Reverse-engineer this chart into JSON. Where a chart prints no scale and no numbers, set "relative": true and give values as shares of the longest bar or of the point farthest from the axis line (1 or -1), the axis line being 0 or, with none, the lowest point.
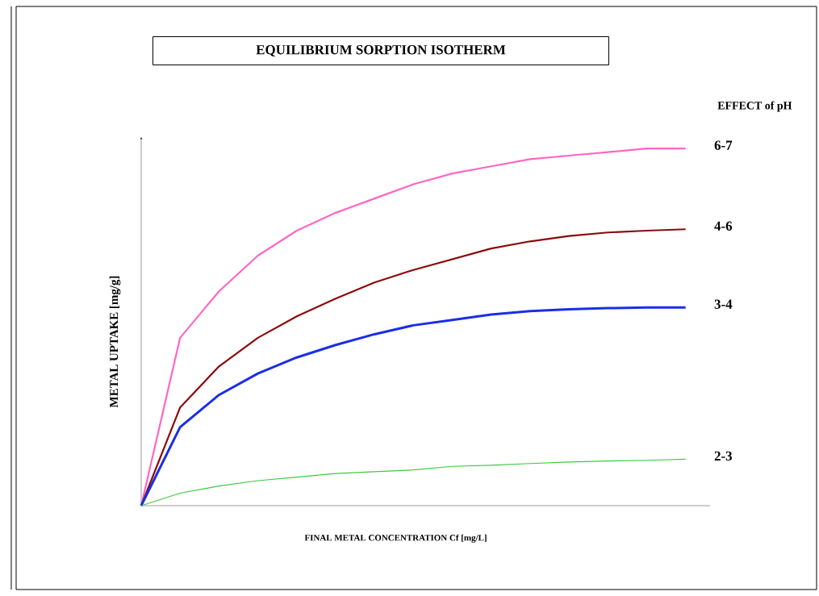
{
  "chart_data": {
    "type": "line",
    "relative": true,
    "title": "EQUILIBRIUM SORPTION ISOTHERM",
    "xlabel": "FINAL METAL CONCENTRATION Cf  [mg/L]",
    "ylabel": "METAL UPTAKE [mg/g]",
    "legend_title": "EFFECT of pH",
    "categories": [
      null,
      null,
      null,
      null,
      null,
      null,
      null,
      null,
      null,
      null,
      null,
      null,
      null,
      null,
      null
    ],
    "series": [
      {
        "name": "6-7",
        "color": "#ff66c4",
        "values": [
          0,
          0.47,
          0.6,
          0.7,
          0.77,
          0.82,
          0.86,
          0.9,
          0.93,
          0.95,
          0.97,
          0.98,
          0.99,
          1.0,
          1.0
        ]
      },
      {
        "name": "4-6",
        "color": "#8b0a0a",
        "values": [
          0,
          0.275,
          0.39,
          0.47,
          0.53,
          0.58,
          0.625,
          0.66,
          0.69,
          0.72,
          0.74,
          0.755,
          0.765,
          0.77,
          0.774
        ]
      },
      {
        "name": "3-4",
        "color": "#1a2ee6",
        "values": [
          0,
          0.22,
          0.31,
          0.37,
          0.415,
          0.45,
          0.48,
          0.505,
          0.52,
          0.535,
          0.545,
          0.55,
          0.553,
          0.555,
          0.555
        ]
      },
      {
        "name": "2-3",
        "color": "#40c840",
        "values": [
          0,
          0.035,
          0.055,
          0.07,
          0.08,
          0.09,
          0.095,
          0.1,
          0.11,
          0.113,
          0.118,
          0.122,
          0.125,
          0.127,
          0.13
        ]
      }
    ]
  }
}
